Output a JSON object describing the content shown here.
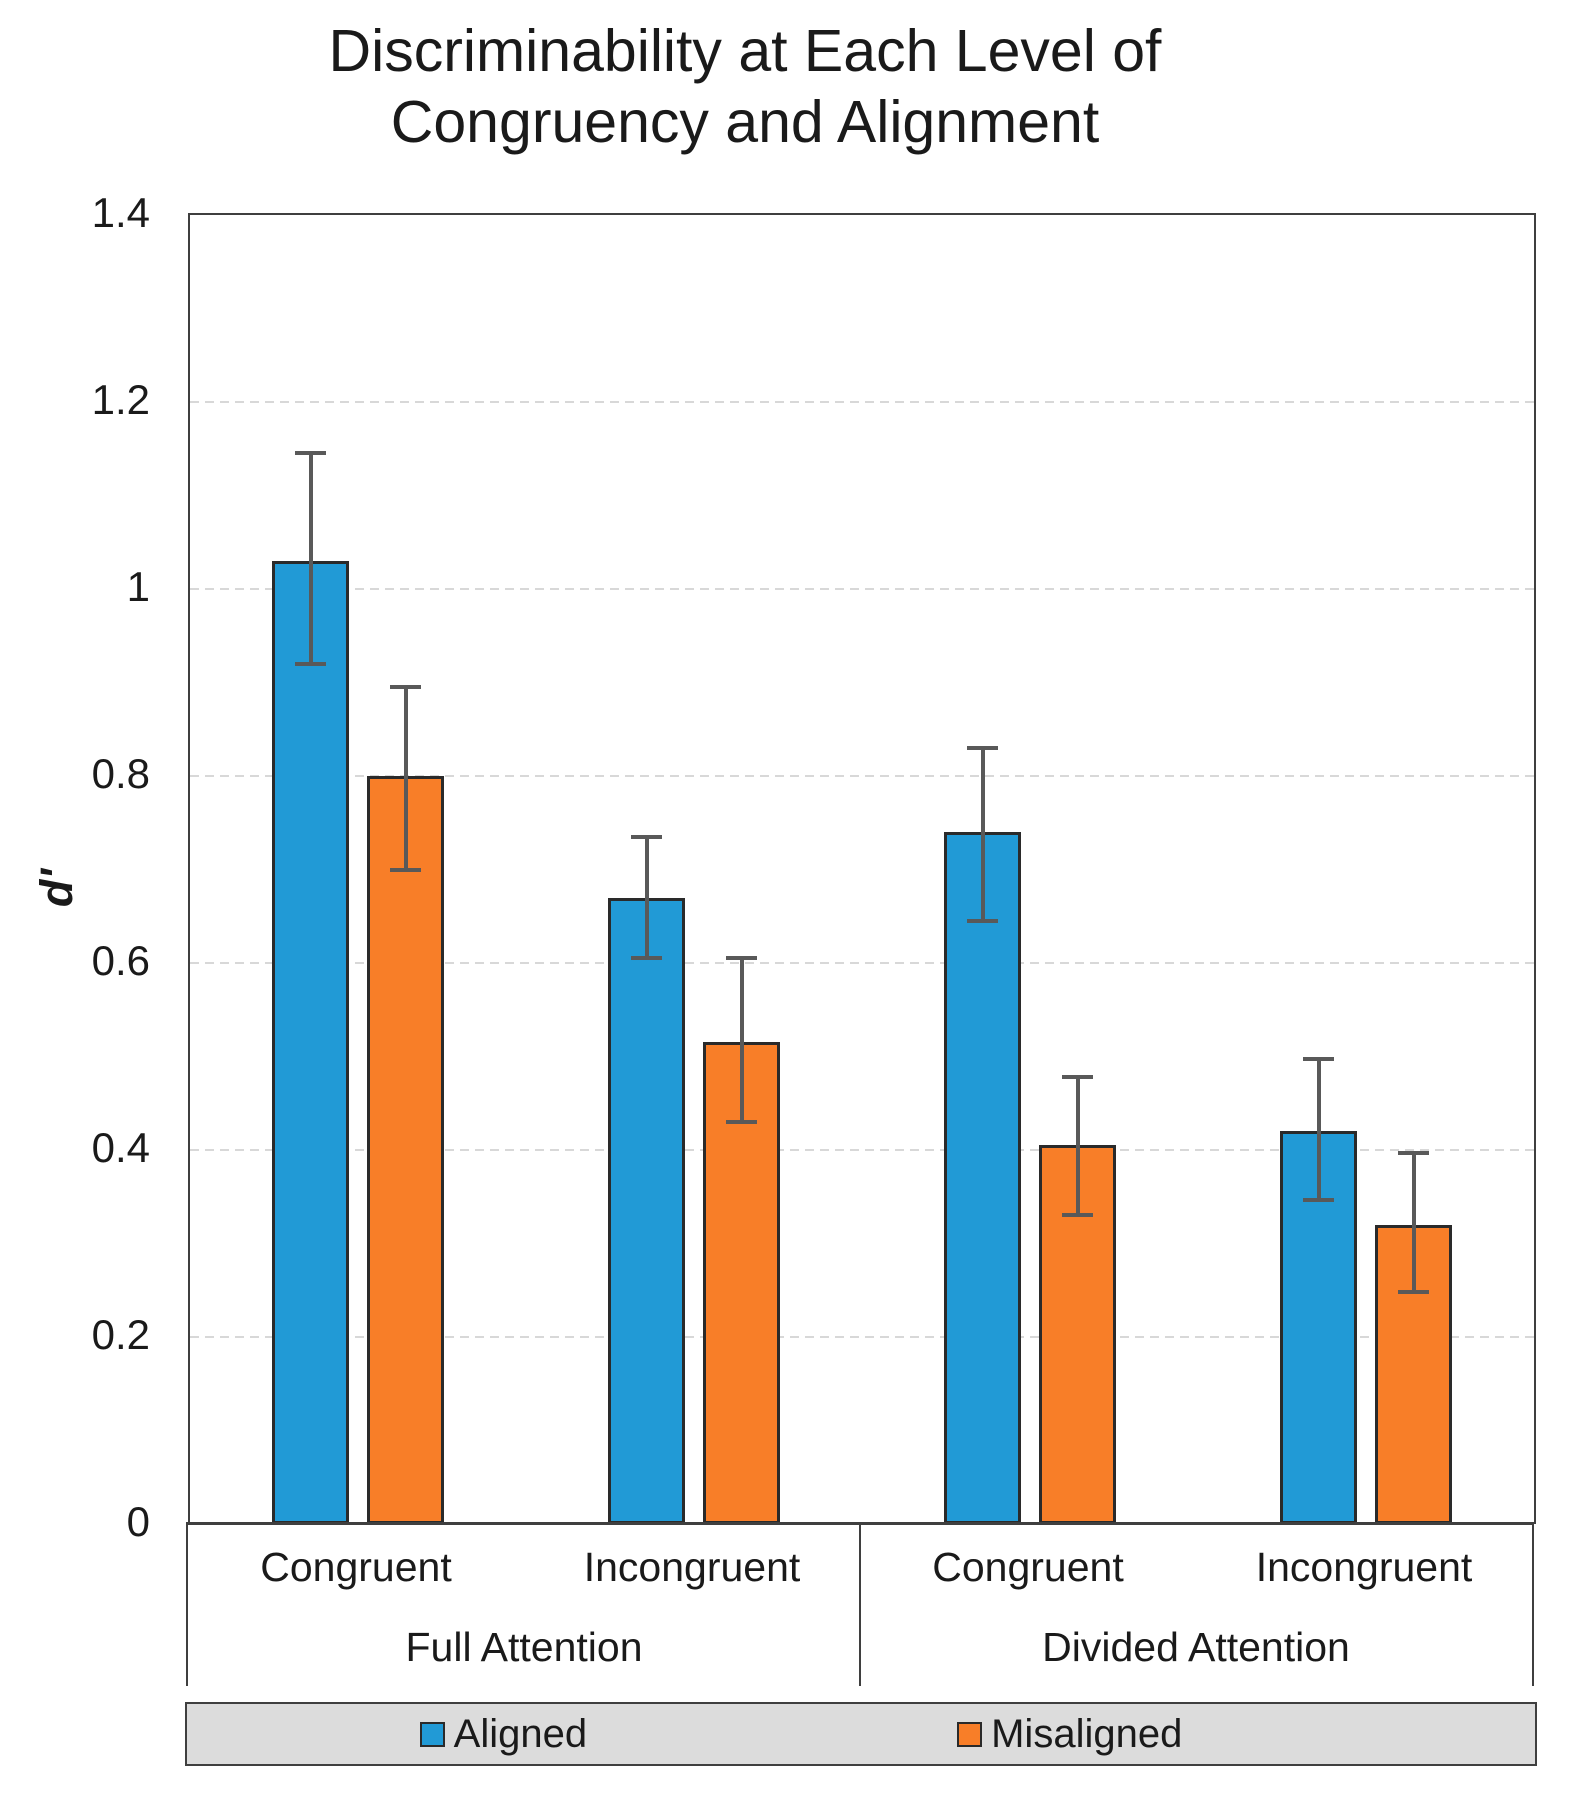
{
  "title": {
    "line1": "Discriminability at Each Level of",
    "line2": "Congruency and Alignment"
  },
  "y_axis": {
    "label": "d'",
    "ticks": [
      "1.4",
      "1.2",
      "1",
      "0.8",
      "0.6",
      "0.4",
      "0.2",
      "0"
    ],
    "tick_values": [
      1.4,
      1.2,
      1.0,
      0.8,
      0.6,
      0.4,
      0.2,
      0
    ]
  },
  "x_axis": {
    "category_labels": [
      "Congruent",
      "Incongruent",
      "Congruent",
      "Incongruent"
    ],
    "group_labels": [
      "Full Attention",
      "Divided Attention"
    ]
  },
  "legend": {
    "items": [
      {
        "label": "Aligned",
        "color": "#219AD6"
      },
      {
        "label": "Misaligned",
        "color": "#F87E28"
      }
    ]
  },
  "colors": {
    "aligned": "#219AD6",
    "misaligned": "#F87E28",
    "bar_outline": "#2A2A2A",
    "axis": "#3F3F3F",
    "gridline": "#D8D8D8",
    "error_bar": "#595959",
    "legend_bg": "#DCDCDC",
    "text": "#1A1A1A"
  },
  "chart_data": {
    "type": "bar",
    "title": "Discriminability at Each Level of Congruency and Alignment",
    "ylabel": "d'",
    "ylim": [
      0,
      1.4
    ],
    "grid": true,
    "legend_position": "bottom",
    "categories": [
      "Full Attention - Congruent",
      "Full Attention - Incongruent",
      "Divided Attention - Congruent",
      "Divided Attention - Incongruent"
    ],
    "series": [
      {
        "name": "Aligned",
        "color": "#219AD6",
        "values": [
          1.03,
          0.67,
          0.74,
          0.42
        ],
        "error_low": [
          0.92,
          0.605,
          0.645,
          0.347
        ],
        "error_high": [
          1.145,
          0.735,
          0.83,
          0.497
        ]
      },
      {
        "name": "Misaligned",
        "color": "#F87E28",
        "values": [
          0.8,
          0.515,
          0.405,
          0.32
        ],
        "error_low": [
          0.7,
          0.43,
          0.33,
          0.248
        ],
        "error_high": [
          0.895,
          0.605,
          0.478,
          0.397
        ]
      }
    ]
  }
}
